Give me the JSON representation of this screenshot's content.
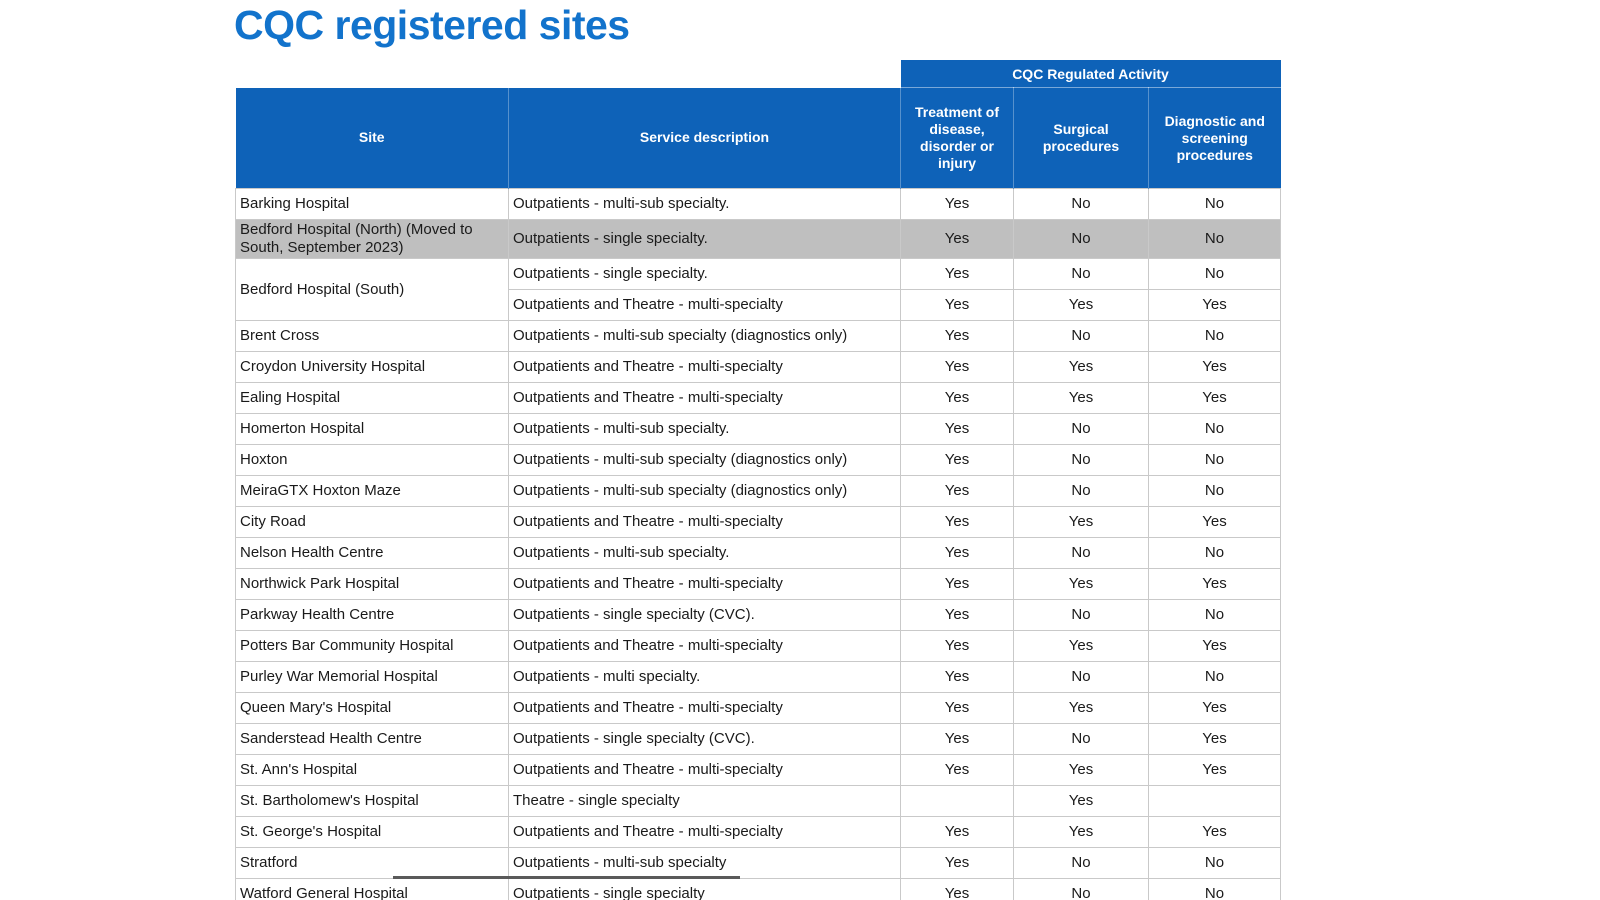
{
  "title": "CQC registered sites",
  "colors": {
    "title_blue": "#1273cc",
    "header_blue": "#0e62b8",
    "highlight_gray": "#bfbfbf",
    "grid_gray": "#c9c9c9"
  },
  "table": {
    "band_header": "CQC Regulated Activity",
    "columns": [
      "Site",
      "Service description",
      "Treatment of disease, disorder or injury",
      "Surgical procedures",
      "Diagnostic and screening procedures"
    ],
    "rows": [
      {
        "site": "Barking Hospital",
        "service": "Outpatients - multi-sub specialty.",
        "values": [
          "Yes",
          "No",
          "No"
        ],
        "highlight": false
      },
      {
        "site": "Bedford Hospital (North) (Moved to South, September 2023)",
        "service": "Outpatients - single specialty.",
        "values": [
          "Yes",
          "No",
          "No"
        ],
        "highlight": true
      },
      {
        "site": "Bedford Hospital (South)",
        "rowspan": 2,
        "service": "Outpatients - single specialty.",
        "values": [
          "Yes",
          "No",
          "No"
        ],
        "highlight": false
      },
      {
        "site": null,
        "service": "Outpatients and Theatre - multi-specialty",
        "values": [
          "Yes",
          "Yes",
          "Yes"
        ],
        "highlight": false
      },
      {
        "site": "Brent Cross",
        "service": "Outpatients - multi-sub specialty (diagnostics only)",
        "values": [
          "Yes",
          "No",
          "No"
        ],
        "highlight": false
      },
      {
        "site": "Croydon University Hospital",
        "service": "Outpatients and Theatre - multi-specialty",
        "values": [
          "Yes",
          "Yes",
          "Yes"
        ],
        "highlight": false
      },
      {
        "site": "Ealing Hospital",
        "service": "Outpatients and Theatre - multi-specialty",
        "values": [
          "Yes",
          "Yes",
          "Yes"
        ],
        "highlight": false
      },
      {
        "site": "Homerton Hospital",
        "service": "Outpatients - multi-sub specialty.",
        "values": [
          "Yes",
          "No",
          "No"
        ],
        "highlight": false
      },
      {
        "site": "Hoxton",
        "service": "Outpatients - multi-sub specialty (diagnostics only)",
        "values": [
          "Yes",
          "No",
          "No"
        ],
        "highlight": false
      },
      {
        "site": "MeiraGTX Hoxton Maze",
        "service": "Outpatients - multi-sub specialty (diagnostics only)",
        "values": [
          "Yes",
          "No",
          "No"
        ],
        "highlight": false
      },
      {
        "site": "City Road",
        "service": "Outpatients and Theatre - multi-specialty",
        "values": [
          "Yes",
          "Yes",
          "Yes"
        ],
        "highlight": false
      },
      {
        "site": "Nelson Health Centre",
        "service": "Outpatients - multi-sub specialty.",
        "values": [
          "Yes",
          "No",
          "No"
        ],
        "highlight": false
      },
      {
        "site": "Northwick Park Hospital",
        "service": "Outpatients and Theatre - multi-specialty",
        "values": [
          "Yes",
          "Yes",
          "Yes"
        ],
        "highlight": false
      },
      {
        "site": "Parkway Health Centre",
        "service": "Outpatients - single specialty (CVC).",
        "values": [
          "Yes",
          "No",
          "No"
        ],
        "highlight": false
      },
      {
        "site": "Potters Bar Community Hospital",
        "service": "Outpatients and Theatre - multi-specialty",
        "values": [
          "Yes",
          "Yes",
          "Yes"
        ],
        "highlight": false
      },
      {
        "site": "Purley War Memorial Hospital",
        "service": "Outpatients - multi specialty.",
        "values": [
          "Yes",
          "No",
          "No"
        ],
        "highlight": false
      },
      {
        "site": "Queen Mary's Hospital",
        "service": "Outpatients and Theatre - multi-specialty",
        "values": [
          "Yes",
          "Yes",
          "Yes"
        ],
        "highlight": false
      },
      {
        "site": "Sanderstead Health Centre",
        "service": "Outpatients - single specialty (CVC).",
        "values": [
          "Yes",
          "No",
          "Yes"
        ],
        "highlight": false
      },
      {
        "site": "St. Ann's Hospital",
        "service": "Outpatients and Theatre - multi-specialty",
        "values": [
          "Yes",
          "Yes",
          "Yes"
        ],
        "highlight": false
      },
      {
        "site": "St. Bartholomew's Hospital",
        "service": "Theatre - single specialty",
        "values": [
          "",
          "Yes",
          ""
        ],
        "highlight": false
      },
      {
        "site": "St. George's Hospital",
        "service": "Outpatients and Theatre - multi-specialty",
        "values": [
          "Yes",
          "Yes",
          "Yes"
        ],
        "highlight": false
      },
      {
        "site": "Stratford",
        "service": "Outpatients - multi-sub specialty",
        "values": [
          "Yes",
          "No",
          "No"
        ],
        "highlight": false
      },
      {
        "site": "Watford General Hospital",
        "service": "Outpatients - single specialty",
        "values": [
          "Yes",
          "No",
          "No"
        ],
        "highlight": false
      }
    ]
  }
}
